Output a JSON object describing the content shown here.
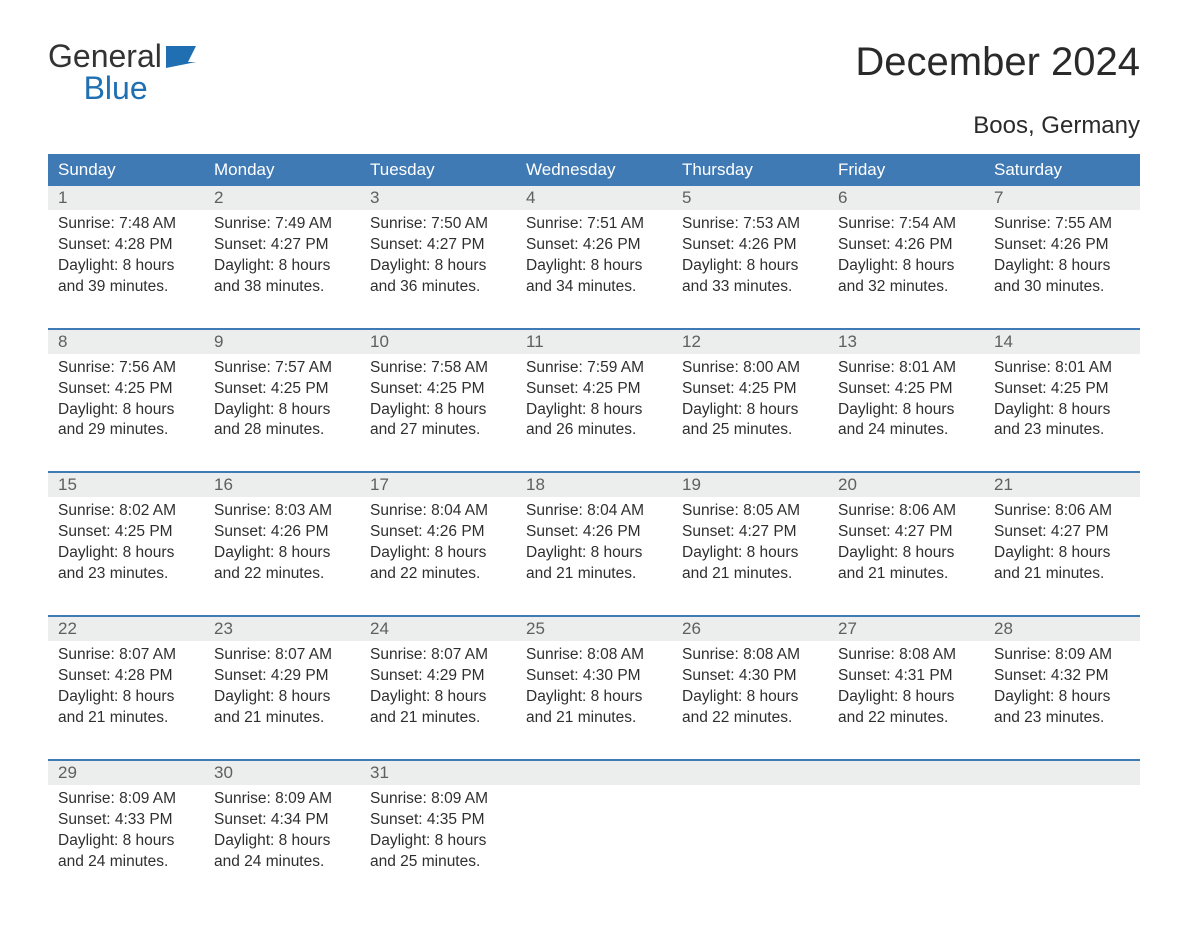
{
  "brand": {
    "word1": "General",
    "word2": "Blue"
  },
  "title": "December 2024",
  "location": "Boos, Germany",
  "colors": {
    "header_bg": "#3f7ab5",
    "header_text": "#ffffff",
    "daynum_bg": "#eceded",
    "daynum_text": "#5f5f5f",
    "week_border": "#3f7ab5",
    "body_text": "#2f2f2f",
    "background": "#ffffff",
    "brand_blue": "#1f6fb2"
  },
  "day_labels": [
    "Sunday",
    "Monday",
    "Tuesday",
    "Wednesday",
    "Thursday",
    "Friday",
    "Saturday"
  ],
  "labels": {
    "sunrise": "Sunrise:",
    "sunset": "Sunset:",
    "daylight": "Daylight:"
  },
  "days": [
    {
      "n": "1",
      "sunrise": "7:48 AM",
      "sunset": "4:28 PM",
      "daylight": "8 hours and 39 minutes."
    },
    {
      "n": "2",
      "sunrise": "7:49 AM",
      "sunset": "4:27 PM",
      "daylight": "8 hours and 38 minutes."
    },
    {
      "n": "3",
      "sunrise": "7:50 AM",
      "sunset": "4:27 PM",
      "daylight": "8 hours and 36 minutes."
    },
    {
      "n": "4",
      "sunrise": "7:51 AM",
      "sunset": "4:26 PM",
      "daylight": "8 hours and 34 minutes."
    },
    {
      "n": "5",
      "sunrise": "7:53 AM",
      "sunset": "4:26 PM",
      "daylight": "8 hours and 33 minutes."
    },
    {
      "n": "6",
      "sunrise": "7:54 AM",
      "sunset": "4:26 PM",
      "daylight": "8 hours and 32 minutes."
    },
    {
      "n": "7",
      "sunrise": "7:55 AM",
      "sunset": "4:26 PM",
      "daylight": "8 hours and 30 minutes."
    },
    {
      "n": "8",
      "sunrise": "7:56 AM",
      "sunset": "4:25 PM",
      "daylight": "8 hours and 29 minutes."
    },
    {
      "n": "9",
      "sunrise": "7:57 AM",
      "sunset": "4:25 PM",
      "daylight": "8 hours and 28 minutes."
    },
    {
      "n": "10",
      "sunrise": "7:58 AM",
      "sunset": "4:25 PM",
      "daylight": "8 hours and 27 minutes."
    },
    {
      "n": "11",
      "sunrise": "7:59 AM",
      "sunset": "4:25 PM",
      "daylight": "8 hours and 26 minutes."
    },
    {
      "n": "12",
      "sunrise": "8:00 AM",
      "sunset": "4:25 PM",
      "daylight": "8 hours and 25 minutes."
    },
    {
      "n": "13",
      "sunrise": "8:01 AM",
      "sunset": "4:25 PM",
      "daylight": "8 hours and 24 minutes."
    },
    {
      "n": "14",
      "sunrise": "8:01 AM",
      "sunset": "4:25 PM",
      "daylight": "8 hours and 23 minutes."
    },
    {
      "n": "15",
      "sunrise": "8:02 AM",
      "sunset": "4:25 PM",
      "daylight": "8 hours and 23 minutes."
    },
    {
      "n": "16",
      "sunrise": "8:03 AM",
      "sunset": "4:26 PM",
      "daylight": "8 hours and 22 minutes."
    },
    {
      "n": "17",
      "sunrise": "8:04 AM",
      "sunset": "4:26 PM",
      "daylight": "8 hours and 22 minutes."
    },
    {
      "n": "18",
      "sunrise": "8:04 AM",
      "sunset": "4:26 PM",
      "daylight": "8 hours and 21 minutes."
    },
    {
      "n": "19",
      "sunrise": "8:05 AM",
      "sunset": "4:27 PM",
      "daylight": "8 hours and 21 minutes."
    },
    {
      "n": "20",
      "sunrise": "8:06 AM",
      "sunset": "4:27 PM",
      "daylight": "8 hours and 21 minutes."
    },
    {
      "n": "21",
      "sunrise": "8:06 AM",
      "sunset": "4:27 PM",
      "daylight": "8 hours and 21 minutes."
    },
    {
      "n": "22",
      "sunrise": "8:07 AM",
      "sunset": "4:28 PM",
      "daylight": "8 hours and 21 minutes."
    },
    {
      "n": "23",
      "sunrise": "8:07 AM",
      "sunset": "4:29 PM",
      "daylight": "8 hours and 21 minutes."
    },
    {
      "n": "24",
      "sunrise": "8:07 AM",
      "sunset": "4:29 PM",
      "daylight": "8 hours and 21 minutes."
    },
    {
      "n": "25",
      "sunrise": "8:08 AM",
      "sunset": "4:30 PM",
      "daylight": "8 hours and 21 minutes."
    },
    {
      "n": "26",
      "sunrise": "8:08 AM",
      "sunset": "4:30 PM",
      "daylight": "8 hours and 22 minutes."
    },
    {
      "n": "27",
      "sunrise": "8:08 AM",
      "sunset": "4:31 PM",
      "daylight": "8 hours and 22 minutes."
    },
    {
      "n": "28",
      "sunrise": "8:09 AM",
      "sunset": "4:32 PM",
      "daylight": "8 hours and 23 minutes."
    },
    {
      "n": "29",
      "sunrise": "8:09 AM",
      "sunset": "4:33 PM",
      "daylight": "8 hours and 24 minutes."
    },
    {
      "n": "30",
      "sunrise": "8:09 AM",
      "sunset": "4:34 PM",
      "daylight": "8 hours and 24 minutes."
    },
    {
      "n": "31",
      "sunrise": "8:09 AM",
      "sunset": "4:35 PM",
      "daylight": "8 hours and 25 minutes."
    }
  ],
  "layout": {
    "columns": 7,
    "start_day_index": 0,
    "total_cells": 35,
    "font_family": "Arial",
    "title_fontsize": 40,
    "location_fontsize": 24,
    "header_fontsize": 17,
    "cell_fontsize": 15.5
  }
}
